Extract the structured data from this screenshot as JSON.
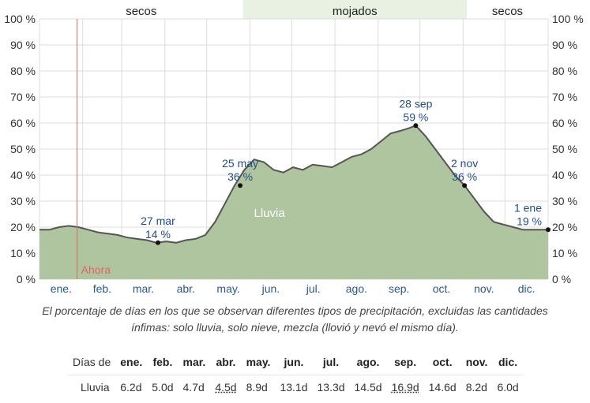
{
  "chart_data": {
    "type": "area",
    "bands": [
      {
        "label": "secos",
        "from": 0,
        "to": 0.4
      },
      {
        "label": "mojados",
        "from": 0.4,
        "to": 0.84
      },
      {
        "label": "secos",
        "from": 0.84,
        "to": 1.0
      }
    ],
    "months": [
      "ene.",
      "feb.",
      "mar.",
      "abr.",
      "may.",
      "jun.",
      "jul.",
      "ago.",
      "sep.",
      "oct.",
      "nov.",
      "dic."
    ],
    "yticks": [
      "0 %",
      "10 %",
      "20 %",
      "30 %",
      "40 %",
      "50 %",
      "60 %",
      "70 %",
      "80 %",
      "90 %",
      "100 %"
    ],
    "ylim": [
      0,
      100
    ],
    "series": [
      {
        "name": "Lluvia",
        "color": "#aec59f",
        "line_color": "#555555",
        "x": [
          1,
          8,
          15,
          22,
          29,
          36,
          43,
          50,
          57,
          64,
          71,
          78,
          85,
          92,
          99,
          106,
          113,
          120,
          127,
          134,
          141,
          148,
          155,
          162,
          169,
          176,
          183,
          190,
          197,
          204,
          211,
          218,
          225,
          232,
          239,
          246,
          253,
          260,
          266,
          271,
          278,
          285,
          292,
          299,
          306,
          313,
          320,
          327,
          334,
          341,
          348,
          355,
          362,
          366
        ],
        "y": [
          19,
          19,
          20,
          20.5,
          20,
          19,
          18,
          17.5,
          17,
          16,
          15.5,
          15,
          14,
          14.5,
          14,
          15,
          15.5,
          17,
          22,
          29,
          36,
          42,
          46,
          45,
          42,
          41,
          43,
          42,
          44,
          43.5,
          43,
          45,
          47,
          48,
          50,
          53,
          56,
          57,
          58,
          59,
          55,
          50,
          45,
          40,
          36,
          31,
          26,
          22,
          21,
          20,
          19,
          19,
          19,
          19
        ]
      }
    ],
    "annotations": [
      {
        "date": "27 mar",
        "value": "14 %",
        "x": 86,
        "y": 14
      },
      {
        "date": "25 may",
        "value": "36 %",
        "x": 145,
        "y": 36
      },
      {
        "date": "28 sep",
        "value": "59 %",
        "x": 271,
        "y": 59
      },
      {
        "date": "2 nov",
        "value": "36 %",
        "x": 306,
        "y": 36
      },
      {
        "date": "1 ene",
        "value": "19 %",
        "x": 366,
        "y": 19
      }
    ],
    "now_marker": {
      "label": "Ahora",
      "x": 28,
      "color": "#e06666"
    }
  },
  "caption": "El porcentaje de días en los que se observan diferentes tipos de precipitación, excluidas las cantidades ínfimas: solo lluvia, solo nieve, mezcla (llovió y nevó el mismo día).",
  "table": {
    "header_label": "Días de",
    "months": [
      "ene.",
      "feb.",
      "mar.",
      "abr.",
      "may.",
      "jun.",
      "jul.",
      "ago.",
      "sep.",
      "oct.",
      "nov.",
      "dic."
    ],
    "row": {
      "label": "Lluvia",
      "values": [
        "6.2d",
        "5.0d",
        "4.7d",
        "4.5d",
        "8.9d",
        "13.1d",
        "13.3d",
        "14.5d",
        "16.9d",
        "14.6d",
        "8.2d",
        "6.0d"
      ]
    }
  }
}
